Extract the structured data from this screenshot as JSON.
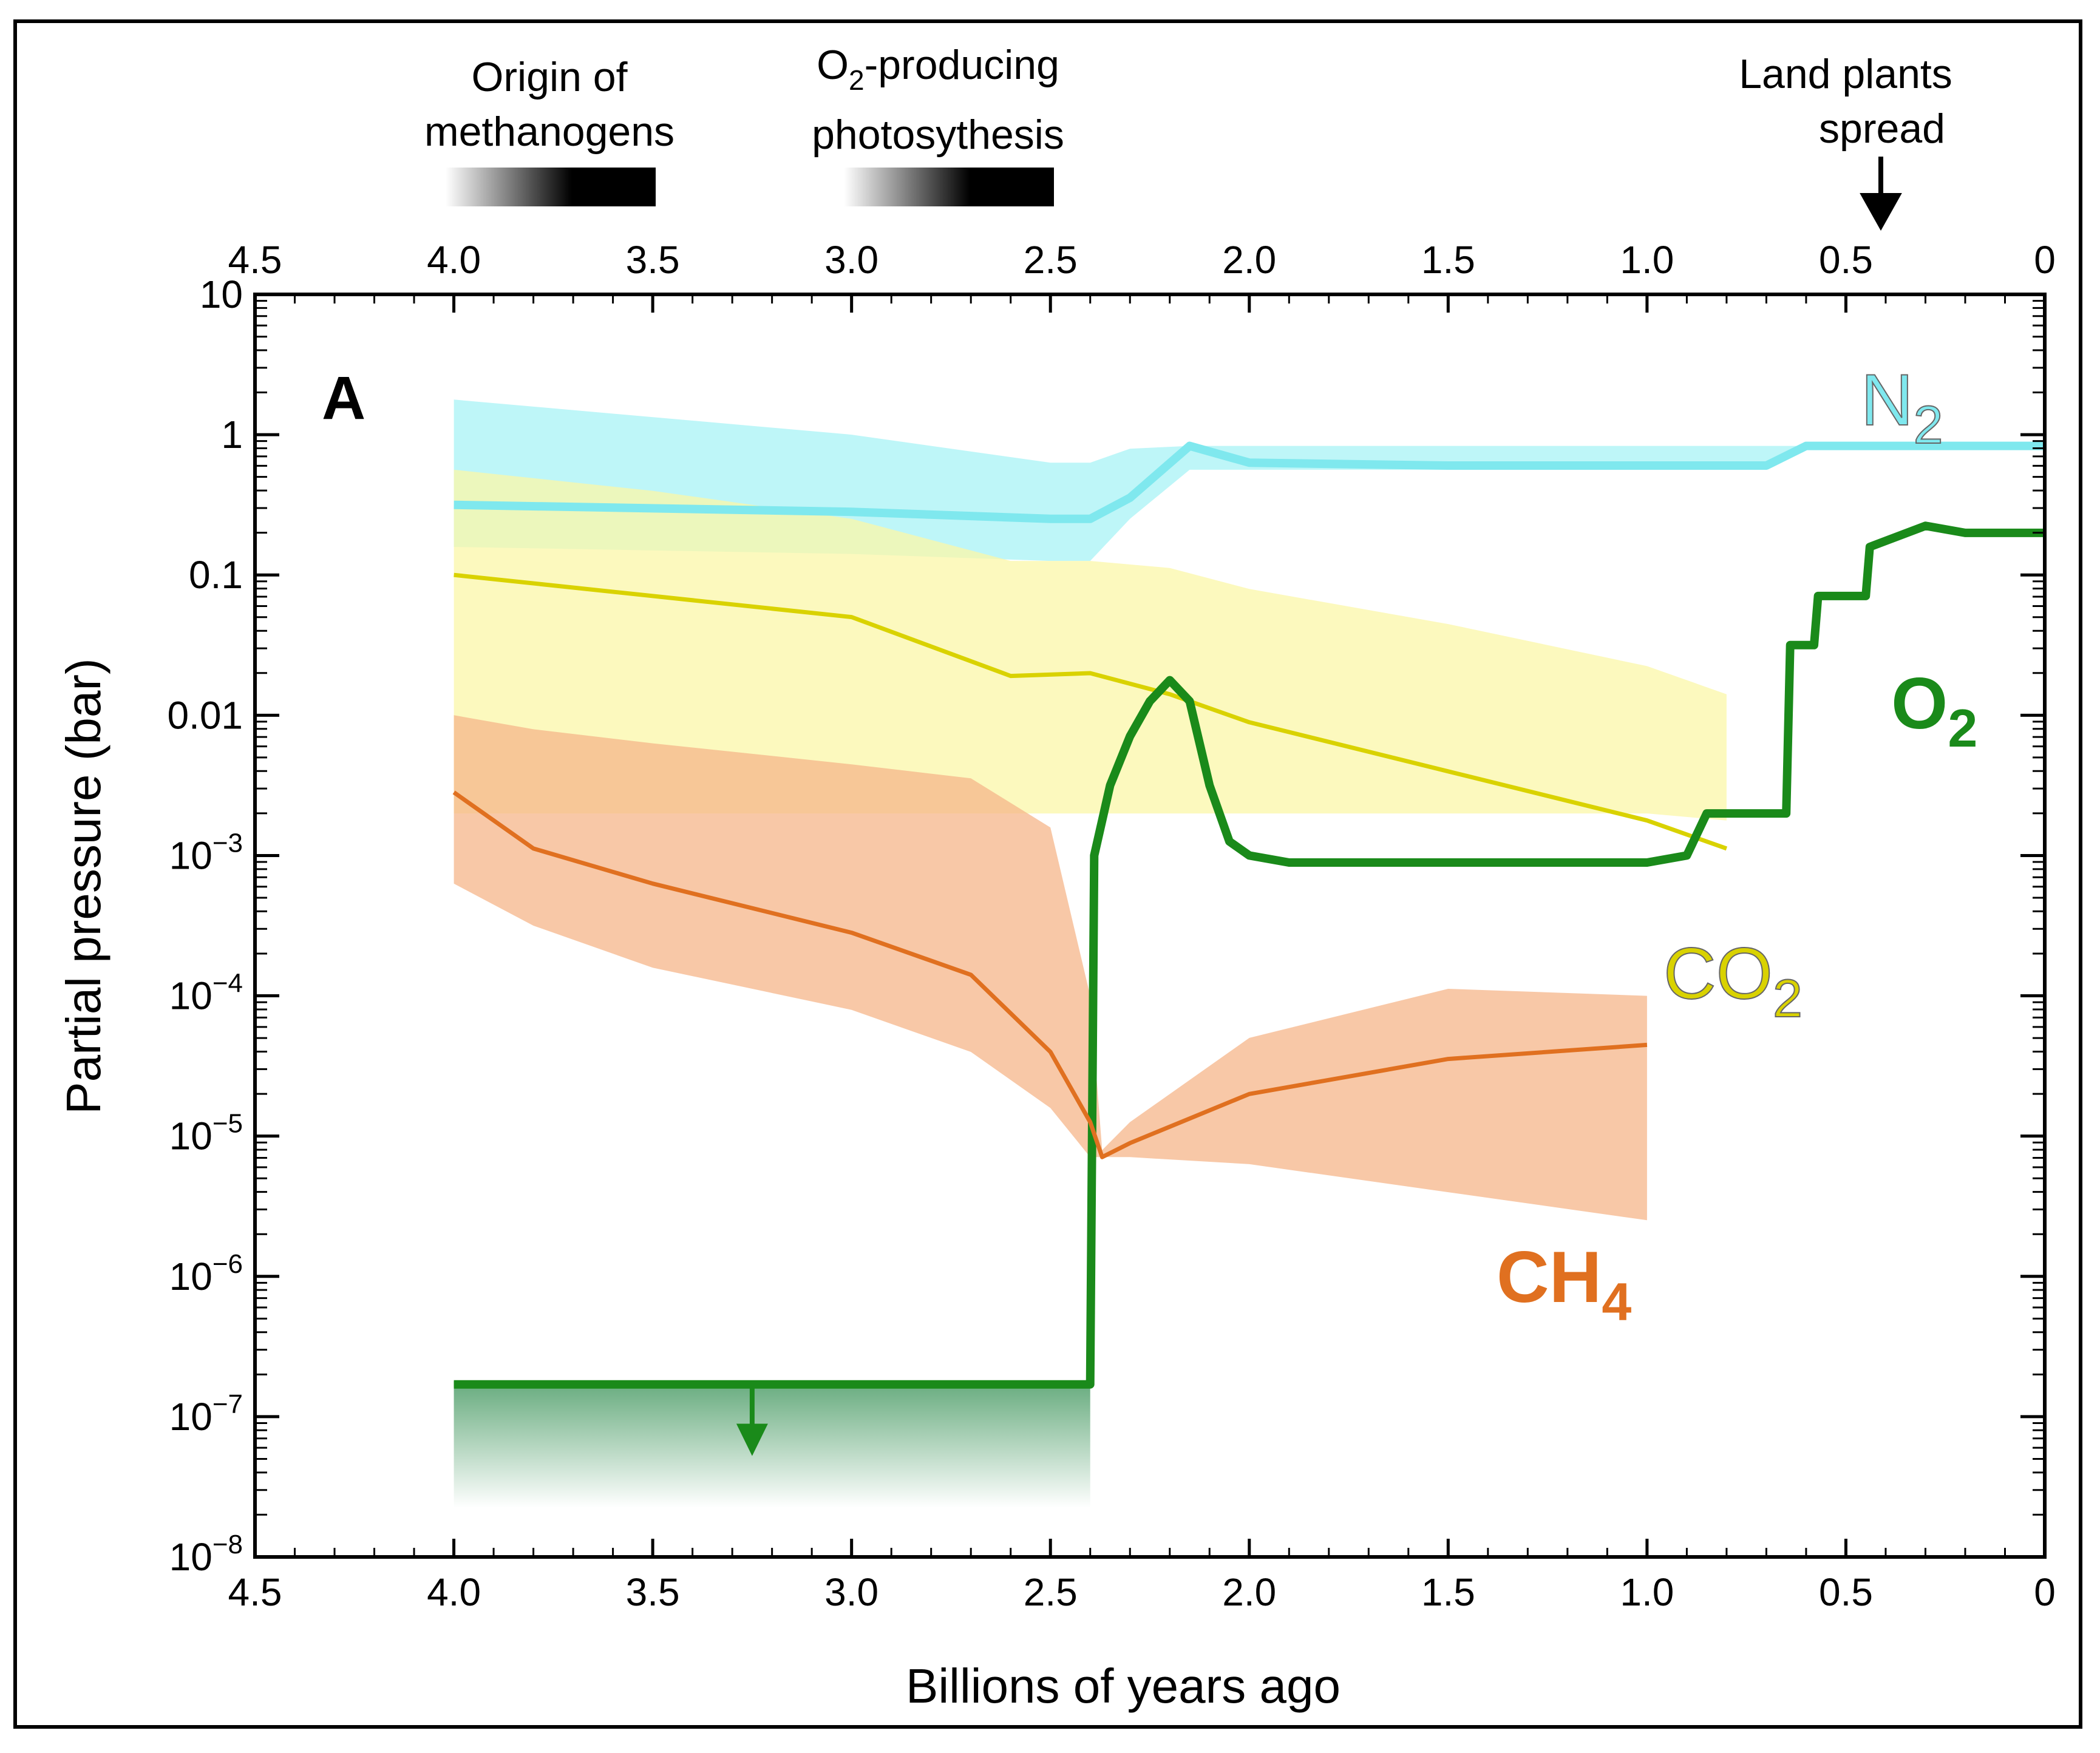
{
  "chart_data": {
    "type": "line",
    "panel_label": "A",
    "xlabel": "Billions of years ago",
    "ylabel": "Partial pressure (bar)",
    "x_reversed": true,
    "xlim": [
      4.5,
      0
    ],
    "ylim_log10": [
      -8,
      1
    ],
    "y_scale": "log",
    "x_ticks": [
      "4.5",
      "4.0",
      "3.5",
      "3.0",
      "2.5",
      "2.0",
      "1.5",
      "1.0",
      "0.5",
      "0"
    ],
    "y_tick_labels": [
      {
        "base": "10",
        "exp": "−8",
        "log": -8
      },
      {
        "base": "10",
        "exp": "−7",
        "log": -7
      },
      {
        "base": "10",
        "exp": "−6",
        "log": -6
      },
      {
        "base": "10",
        "exp": "−5",
        "log": -5
      },
      {
        "base": "10",
        "exp": "−4",
        "log": -4
      },
      {
        "base": "10",
        "exp": "−3",
        "log": -3
      },
      {
        "base": "0.01",
        "exp": "",
        "log": -2
      },
      {
        "base": "0.1",
        "exp": "",
        "log": -1
      },
      {
        "base": "1",
        "exp": "",
        "log": 0
      },
      {
        "base": "10",
        "exp": "",
        "log": 1
      }
    ],
    "series": [
      {
        "name": "N2",
        "label_main": "N",
        "label_sub": "2",
        "color": "#7fe8ee",
        "x": [
          4.0,
          3.0,
          2.5,
          2.4,
          2.3,
          2.15,
          2.0,
          1.5,
          1.0,
          0.7,
          0.6,
          0.0
        ],
        "log_y": [
          -0.5,
          -0.55,
          -0.6,
          -0.6,
          -0.45,
          -0.08,
          -0.2,
          -0.22,
          -0.22,
          -0.22,
          -0.08,
          -0.08
        ],
        "band_low": [
          -0.8,
          -0.85,
          -0.9,
          -0.9,
          -0.6,
          -0.25,
          -0.25,
          -0.25,
          -0.25,
          -0.25,
          -0.08,
          -0.08
        ],
        "band_high": [
          0.25,
          0.0,
          -0.2,
          -0.2,
          -0.1,
          -0.08,
          -0.08,
          -0.08,
          -0.08,
          -0.08,
          -0.08,
          -0.08
        ]
      },
      {
        "name": "CO2",
        "label_main": "CO",
        "label_sub": "2",
        "color": "#d9d200",
        "x": [
          4.0,
          3.5,
          3.0,
          2.6,
          2.4,
          2.2,
          2.0,
          1.5,
          1.0,
          0.8
        ],
        "log_y": [
          -1.0,
          -1.15,
          -1.3,
          -1.72,
          -1.7,
          -1.85,
          -2.05,
          -2.4,
          -2.75,
          -2.95
        ],
        "band_low": [
          -2.7,
          -2.7,
          -2.7,
          -2.7,
          -2.7,
          -2.7,
          -2.7,
          -2.7,
          -2.7,
          -2.75
        ],
        "band_high": [
          -0.25,
          -0.4,
          -0.6,
          -0.9,
          -0.9,
          -0.95,
          -1.1,
          -1.35,
          -1.65,
          -1.85
        ]
      },
      {
        "name": "O2",
        "label_main": "O",
        "label_sub": "2",
        "color": "#1a8a1a",
        "x": [
          4.0,
          2.4,
          2.39,
          2.35,
          2.3,
          2.25,
          2.2,
          2.15,
          2.1,
          2.05,
          2.0,
          1.9,
          1.5,
          1.0,
          0.9,
          0.85,
          0.65,
          0.64,
          0.58,
          0.57,
          0.45,
          0.44,
          0.3,
          0.2,
          0.0
        ],
        "log_y": [
          -6.77,
          -6.77,
          -3.0,
          -2.5,
          -2.15,
          -1.9,
          -1.75,
          -1.9,
          -2.5,
          -2.9,
          -3.0,
          -3.05,
          -3.05,
          -3.05,
          -3.0,
          -2.7,
          -2.7,
          -1.5,
          -1.5,
          -1.15,
          -1.15,
          -0.8,
          -0.65,
          -0.7,
          -0.7
        ]
      },
      {
        "name": "CH4",
        "label_main": "CH",
        "label_sub": "4",
        "color": "#e07020",
        "x": [
          4.0,
          3.8,
          3.5,
          3.0,
          2.7,
          2.5,
          2.4,
          2.37,
          2.3,
          2.0,
          1.5,
          1.0
        ],
        "log_y": [
          -2.55,
          -2.95,
          -3.2,
          -3.55,
          -3.85,
          -4.4,
          -4.9,
          -5.15,
          -5.05,
          -4.7,
          -4.45,
          -4.35
        ],
        "band_low": [
          -3.2,
          -3.5,
          -3.8,
          -4.1,
          -4.4,
          -4.8,
          -5.15,
          -5.15,
          -5.15,
          -5.2,
          -5.4,
          -5.6
        ],
        "band_high": [
          -2.0,
          -2.1,
          -2.2,
          -2.35,
          -2.45,
          -2.8,
          -4.0,
          -5.1,
          -4.9,
          -4.3,
          -3.95,
          -4.0
        ]
      }
    ],
    "annotations": [
      {
        "lines": [
          "Origin of",
          "methanogens"
        ],
        "range": [
          4.0,
          3.5
        ]
      },
      {
        "lines": [
          "O",
          "2",
          "-producing",
          "photosythesis"
        ],
        "range": [
          3.0,
          2.5
        ]
      },
      {
        "lines": [
          "Land plants",
          "spread"
        ],
        "x": 0.4
      }
    ]
  }
}
